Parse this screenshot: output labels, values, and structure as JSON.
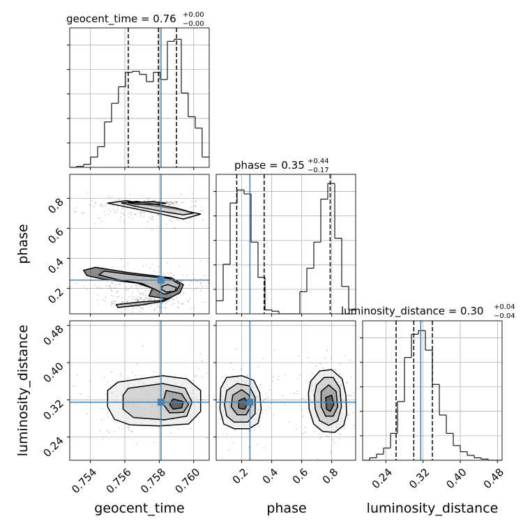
{
  "chart_data": {
    "type": "corner",
    "parameters": [
      "geocent_time",
      "phase",
      "luminosity_distance"
    ],
    "truths": {
      "geocent_time": 0.7581,
      "phase": 0.255,
      "luminosity_distance": 0.315
    },
    "ranges": {
      "geocent_time": [
        0.7528,
        0.7609
      ],
      "phase": [
        0.03,
        0.96
      ],
      "luminosity_distance": [
        0.19,
        0.49
      ]
    },
    "grid": true,
    "titles": {
      "geocent_time": {
        "label": "geocent_time = 0.76",
        "plus": "+0.00",
        "minus": "−0.00"
      },
      "phase": {
        "label": "phase = 0.35",
        "plus": "+0.44",
        "minus": "−0.17"
      },
      "luminosity_distance": {
        "label": "luminosity_distance = 0.30",
        "plus": "+0.04",
        "minus": "−0.04"
      }
    },
    "axis_labels": {
      "x": [
        "geocent_time",
        "phase",
        "luminosity_distance"
      ],
      "y": [
        "phase",
        "luminosity_distance"
      ]
    },
    "ticks": {
      "geocent_time": {
        "values": [
          0.754,
          0.756,
          0.758,
          0.76
        ],
        "labels": [
          "0.754",
          "0.756",
          "0.758",
          "0.760"
        ]
      },
      "phase": {
        "values": [
          0.2,
          0.4,
          0.6,
          0.8
        ],
        "labels": [
          "0.2",
          "0.4",
          "0.6",
          "0.8"
        ]
      },
      "luminosity_distance": {
        "values": [
          0.24,
          0.32,
          0.4,
          0.48
        ],
        "labels": [
          "0.24",
          "0.32",
          "0.40",
          "0.48"
        ]
      }
    },
    "histograms": {
      "geocent_time": {
        "edges": [
          0.7528,
          0.7532,
          0.75361,
          0.75401,
          0.75442,
          0.75482,
          0.75523,
          0.75563,
          0.75604,
          0.75644,
          0.75685,
          0.75725,
          0.75766,
          0.75806,
          0.75847,
          0.75887,
          0.75928,
          0.75968,
          0.76009,
          0.76049,
          0.7609
        ],
        "counts": [
          0,
          1,
          3,
          10,
          20,
          44,
          62,
          78,
          92,
          93,
          90,
          83,
          92,
          85,
          122,
          124,
          72,
          49,
          38,
          10
        ],
        "quantiles": [
          0.7562,
          0.75795,
          0.759
        ],
        "ymax": 135
      },
      "phase": {
        "edges": [
          0.03,
          0.0765,
          0.123,
          0.1695,
          0.216,
          0.2625,
          0.309,
          0.3555,
          0.402,
          0.4485,
          0.495,
          0.5415,
          0.588,
          0.6345,
          0.681,
          0.7275,
          0.774,
          0.8205,
          0.867,
          0.9135,
          0.96
        ],
        "counts": [
          10,
          38,
          85,
          95,
          92,
          55,
          28,
          3,
          2,
          0,
          0,
          0,
          17,
          35,
          55,
          88,
          100,
          58,
          21,
          3
        ],
        "quantiles": [
          0.167,
          0.35,
          0.79
        ],
        "ymax": 107
      },
      "luminosity_distance": {
        "edges": [
          0.19,
          0.205,
          0.22,
          0.235,
          0.25,
          0.265,
          0.28,
          0.295,
          0.31,
          0.325,
          0.34,
          0.355,
          0.37,
          0.385,
          0.4,
          0.415,
          0.43,
          0.445,
          0.46,
          0.475,
          0.49
        ],
        "counts": [
          0,
          2,
          5,
          10,
          22,
          48,
          84,
          103,
          106,
          90,
          62,
          37,
          22,
          12,
          7,
          4,
          2,
          1,
          0,
          0
        ],
        "quantiles": [
          0.262,
          0.3,
          0.34
        ],
        "ymax": 114
      }
    },
    "contour_sets": {
      "geocent_time|phase": [
        [
          [
            0.7561,
            0.785
          ],
          [
            0.757,
            0.762
          ],
          [
            0.759,
            0.728
          ],
          [
            0.7604,
            0.695
          ],
          [
            0.7594,
            0.662
          ],
          [
            0.7578,
            0.703
          ],
          [
            0.7562,
            0.74
          ],
          [
            0.755,
            0.768
          ]
        ],
        [
          [
            0.7567,
            0.78
          ],
          [
            0.7575,
            0.765
          ],
          [
            0.759,
            0.735
          ],
          [
            0.76,
            0.702
          ],
          [
            0.7594,
            0.69
          ],
          [
            0.7582,
            0.712
          ],
          [
            0.7566,
            0.747
          ],
          [
            0.7558,
            0.77
          ]
        ],
        [
          [
            0.7576,
            0.778
          ],
          [
            0.7584,
            0.768
          ],
          [
            0.7578,
            0.76
          ],
          [
            0.7566,
            0.762
          ],
          [
            0.7562,
            0.77
          ]
        ],
        [
          [
            0.7543,
            0.34
          ],
          [
            0.7562,
            0.305
          ],
          [
            0.7587,
            0.27
          ],
          [
            0.7594,
            0.225
          ],
          [
            0.7592,
            0.17
          ],
          [
            0.7585,
            0.13
          ],
          [
            0.7574,
            0.148
          ],
          [
            0.7576,
            0.2
          ],
          [
            0.7567,
            0.235
          ],
          [
            0.7547,
            0.262
          ],
          [
            0.7538,
            0.285
          ],
          [
            0.7536,
            0.32
          ]
        ],
        [
          [
            0.7548,
            0.315
          ],
          [
            0.7565,
            0.29
          ],
          [
            0.7586,
            0.265
          ],
          [
            0.7592,
            0.225
          ],
          [
            0.759,
            0.185
          ],
          [
            0.7583,
            0.16
          ],
          [
            0.7578,
            0.19
          ],
          [
            0.757,
            0.232
          ],
          [
            0.7555,
            0.26
          ],
          [
            0.7545,
            0.29
          ]
        ],
        [
          [
            0.7585,
            0.225
          ],
          [
            0.759,
            0.205
          ],
          [
            0.7589,
            0.18
          ],
          [
            0.7584,
            0.175
          ],
          [
            0.7581,
            0.195
          ],
          [
            0.7582,
            0.215
          ]
        ],
        [
          [
            0.7555,
            0.092
          ],
          [
            0.7568,
            0.108
          ],
          [
            0.7581,
            0.118
          ],
          [
            0.7587,
            0.14
          ],
          [
            0.7583,
            0.115
          ],
          [
            0.757,
            0.09
          ],
          [
            0.7556,
            0.072
          ]
        ]
      ],
      "geocent_time|luminosity_distance": [
        [
          [
            0.7556,
            0.358
          ],
          [
            0.7567,
            0.364
          ],
          [
            0.7582,
            0.372
          ],
          [
            0.7596,
            0.365
          ],
          [
            0.7604,
            0.34
          ],
          [
            0.7604,
            0.295
          ],
          [
            0.7597,
            0.268
          ],
          [
            0.758,
            0.264
          ],
          [
            0.7563,
            0.266
          ],
          [
            0.7554,
            0.278
          ],
          [
            0.755,
            0.305
          ],
          [
            0.755,
            0.34
          ]
        ],
        [
          [
            0.7562,
            0.345
          ],
          [
            0.7582,
            0.355
          ],
          [
            0.7595,
            0.345
          ],
          [
            0.7599,
            0.315
          ],
          [
            0.7596,
            0.285
          ],
          [
            0.7583,
            0.277
          ],
          [
            0.7565,
            0.282
          ],
          [
            0.7559,
            0.3
          ],
          [
            0.7559,
            0.33
          ]
        ],
        [
          [
            0.7584,
            0.34
          ],
          [
            0.7593,
            0.333
          ],
          [
            0.7597,
            0.31
          ],
          [
            0.7594,
            0.293
          ],
          [
            0.7586,
            0.292
          ],
          [
            0.7582,
            0.312
          ]
        ],
        [
          [
            0.7588,
            0.322
          ],
          [
            0.7594,
            0.316
          ],
          [
            0.7593,
            0.303
          ],
          [
            0.7588,
            0.3
          ],
          [
            0.7586,
            0.31
          ]
        ]
      ],
      "phase|luminosity_distance": [
        [
          [
            0.06,
            0.345
          ],
          [
            0.1,
            0.368
          ],
          [
            0.2,
            0.372
          ],
          [
            0.28,
            0.362
          ],
          [
            0.32,
            0.335
          ],
          [
            0.33,
            0.3
          ],
          [
            0.31,
            0.27
          ],
          [
            0.25,
            0.258
          ],
          [
            0.15,
            0.258
          ],
          [
            0.08,
            0.268
          ],
          [
            0.055,
            0.3
          ]
        ],
        [
          [
            0.1,
            0.34
          ],
          [
            0.17,
            0.355
          ],
          [
            0.25,
            0.35
          ],
          [
            0.29,
            0.325
          ],
          [
            0.29,
            0.29
          ],
          [
            0.24,
            0.272
          ],
          [
            0.15,
            0.272
          ],
          [
            0.1,
            0.285
          ],
          [
            0.085,
            0.31
          ]
        ],
        [
          [
            0.14,
            0.33
          ],
          [
            0.2,
            0.342
          ],
          [
            0.25,
            0.33
          ],
          [
            0.26,
            0.305
          ],
          [
            0.23,
            0.288
          ],
          [
            0.17,
            0.288
          ],
          [
            0.13,
            0.305
          ]
        ],
        [
          [
            0.18,
            0.318
          ],
          [
            0.22,
            0.324
          ],
          [
            0.24,
            0.312
          ],
          [
            0.22,
            0.3
          ],
          [
            0.18,
            0.302
          ]
        ],
        [
          [
            0.66,
            0.36
          ],
          [
            0.72,
            0.382
          ],
          [
            0.8,
            0.385
          ],
          [
            0.87,
            0.365
          ],
          [
            0.895,
            0.33
          ],
          [
            0.9,
            0.29
          ],
          [
            0.88,
            0.265
          ],
          [
            0.82,
            0.25
          ],
          [
            0.74,
            0.252
          ],
          [
            0.68,
            0.268
          ],
          [
            0.65,
            0.3
          ],
          [
            0.645,
            0.335
          ]
        ],
        [
          [
            0.7,
            0.352
          ],
          [
            0.75,
            0.368
          ],
          [
            0.81,
            0.368
          ],
          [
            0.855,
            0.345
          ],
          [
            0.865,
            0.305
          ],
          [
            0.84,
            0.275
          ],
          [
            0.78,
            0.265
          ],
          [
            0.72,
            0.275
          ],
          [
            0.69,
            0.3
          ],
          [
            0.685,
            0.33
          ]
        ],
        [
          [
            0.73,
            0.338
          ],
          [
            0.78,
            0.352
          ],
          [
            0.83,
            0.338
          ],
          [
            0.84,
            0.305
          ],
          [
            0.81,
            0.285
          ],
          [
            0.76,
            0.285
          ],
          [
            0.73,
            0.305
          ]
        ],
        [
          [
            0.76,
            0.325
          ],
          [
            0.8,
            0.33
          ],
          [
            0.815,
            0.31
          ],
          [
            0.79,
            0.295
          ],
          [
            0.765,
            0.3
          ]
        ]
      ]
    }
  }
}
